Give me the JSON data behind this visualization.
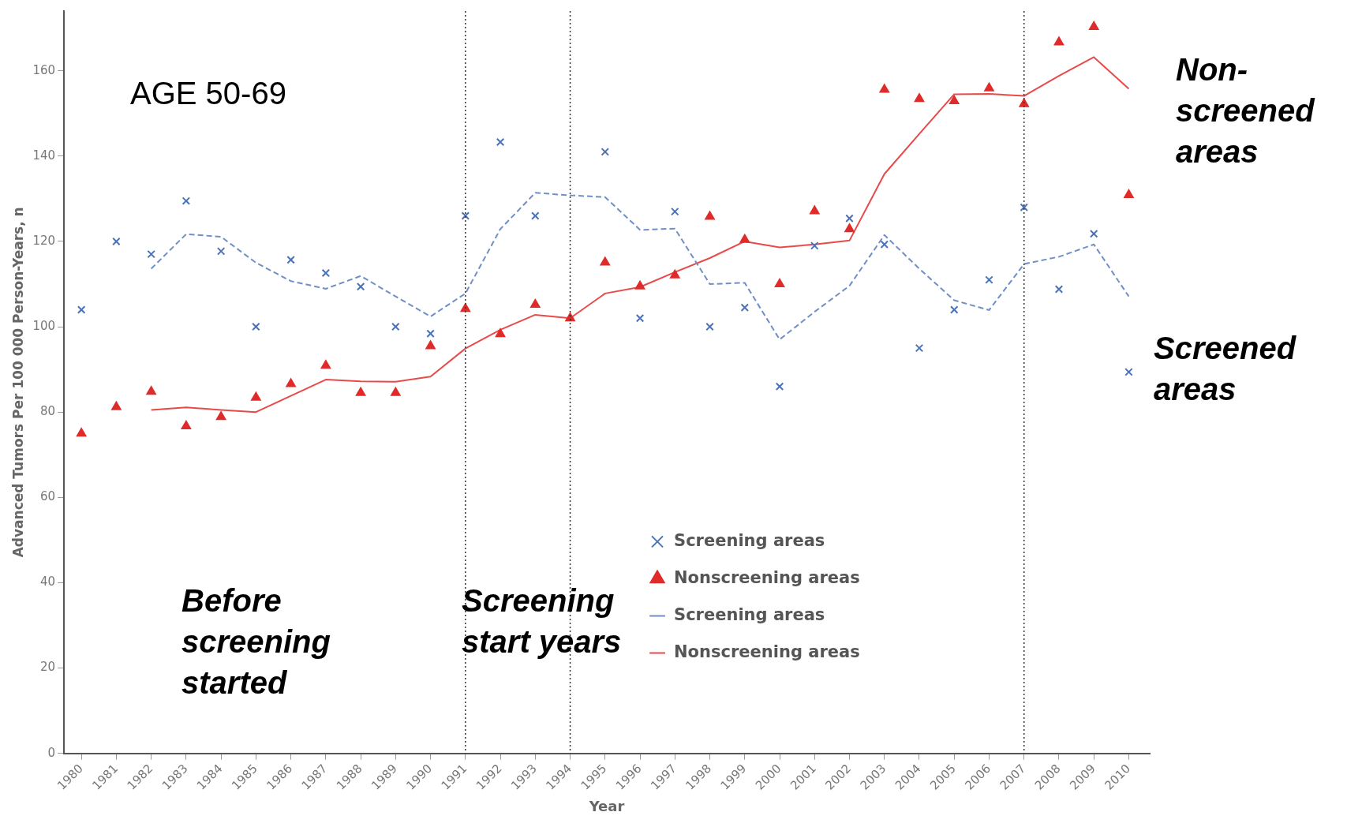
{
  "chart_data": {
    "type": "scatter",
    "xlabel": "Year",
    "ylabel": "Advanced Tumors Per 100 000 Person-Years, n",
    "x": [
      1980,
      1981,
      1982,
      1983,
      1984,
      1985,
      1986,
      1987,
      1988,
      1989,
      1990,
      1991,
      1992,
      1993,
      1994,
      1995,
      1996,
      1997,
      1998,
      1999,
      2000,
      2001,
      2002,
      2003,
      2004,
      2005,
      2006,
      2007,
      2008,
      2009,
      2010
    ],
    "xlim": [
      1979.5,
      2010.6
    ],
    "xticks": [
      1980,
      1981,
      1982,
      1983,
      1984,
      1985,
      1986,
      1987,
      1988,
      1989,
      1990,
      1991,
      1992,
      1993,
      1994,
      1995,
      1996,
      1997,
      1998,
      1999,
      2000,
      2001,
      2002,
      2003,
      2004,
      2005,
      2006,
      2007,
      2008,
      2009,
      2010
    ],
    "ylim": [
      0,
      174
    ],
    "yticks": [
      0,
      20,
      40,
      60,
      80,
      100,
      120,
      140,
      160
    ],
    "grid": false,
    "legend": "bottom right",
    "series": [
      {
        "name": "Screening areas",
        "type": "scatter",
        "marker": "cross",
        "color": "#4a72b8",
        "values": [
          104,
          120,
          117,
          129.5,
          117.7,
          100,
          115.7,
          112.6,
          109.4,
          100,
          98.4,
          126,
          143.3,
          126,
          null,
          141,
          102,
          127,
          100,
          104.5,
          86,
          119,
          125.4,
          119.3,
          95,
          104,
          111,
          128,
          108.8,
          121.8,
          89.4
        ]
      },
      {
        "name": "Nonscreening areas",
        "type": "scatter",
        "marker": "triangle",
        "color": "#e02b2b",
        "values": [
          75,
          81.2,
          84.8,
          76.7,
          78.9,
          83.4,
          86.6,
          90.9,
          84.5,
          84.5,
          95.5,
          104.2,
          98.3,
          105.2,
          102,
          115.1,
          109.5,
          112.1,
          125.8,
          120.4,
          110,
          127.1,
          122.9,
          155.6,
          153.4,
          152.9,
          155.9,
          152.2,
          166.7,
          170.3,
          130.9
        ]
      },
      {
        "name": "Screening areas",
        "type": "line",
        "marker": "none",
        "line_style": "dashed",
        "color": "#6f8fc5",
        "values": [
          null,
          null,
          113.6,
          121.7,
          121.1,
          115,
          110.7,
          108.9,
          111.9,
          107.1,
          102.4,
          107.8,
          122.9,
          131.4,
          130.8,
          130.4,
          122.7,
          123,
          110,
          110.3,
          97,
          103.5,
          109.6,
          121.5,
          113.6,
          106.2,
          103.9,
          114.7,
          116.4,
          119.3,
          107.1
        ]
      },
      {
        "name": "Nonscreening areas",
        "type": "line",
        "marker": "none",
        "line_style": "solid",
        "color": "#e84a4a",
        "values": [
          null,
          null,
          80.5,
          81.1,
          80.5,
          80,
          83.8,
          87.6,
          87.2,
          87.1,
          88.3,
          94.9,
          99.3,
          102.8,
          102,
          107.8,
          109.3,
          112.8,
          116.1,
          120,
          118.6,
          119.3,
          120.2,
          135.8,
          145.2,
          154.5,
          154.6,
          154.1,
          158.8,
          163.2,
          155.8
        ]
      }
    ],
    "ref_lines": [
      {
        "axis": "x",
        "value": 1991,
        "color": "#333333",
        "line_style": "dotted"
      },
      {
        "axis": "x",
        "value": 1994,
        "color": "#333333",
        "line_style": "dotted"
      },
      {
        "axis": "x",
        "value": 2007,
        "color": "#333333",
        "line_style": "dotted"
      }
    ],
    "annotations": [
      "AGE 50-69",
      "Before screening started",
      "Screening start years",
      "Non-screened areas",
      "Screened areas"
    ]
  }
}
